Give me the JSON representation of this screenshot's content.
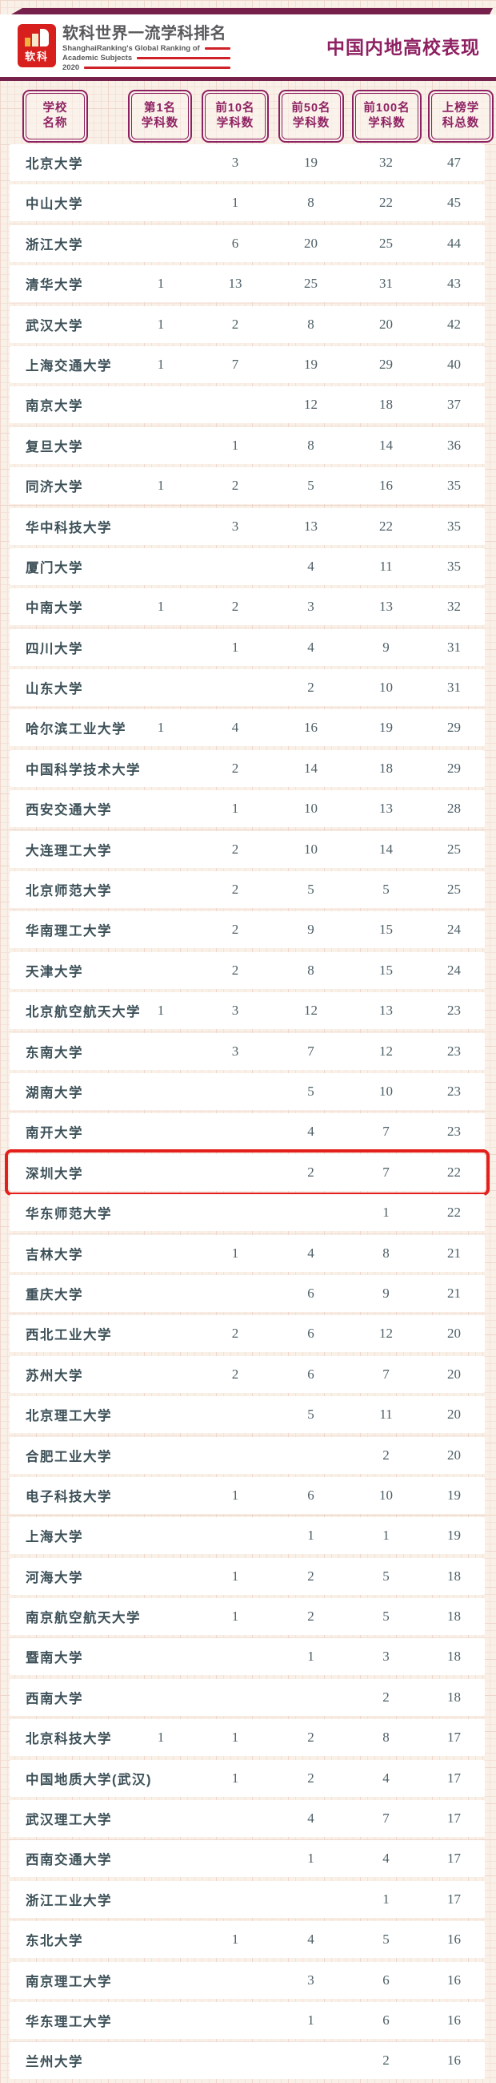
{
  "header": {
    "logo": {
      "brand_cn": "软科",
      "title_cn": "软科世界一流学科排名",
      "subtitle_line1": "ShanghaiRanking's Global Ranking of",
      "subtitle_line2": "Academic Subjects",
      "year": "2020"
    },
    "page_title": "中国内地高校表现"
  },
  "colors": {
    "accent_purple": "#8e2162",
    "banner_purple": "#76204c",
    "logo_red": "#d7201d",
    "rule_red": "#cf2128",
    "highlight_red": "#e3201b",
    "row_text": "#3d5158",
    "background_cream": "#f9f0e7"
  },
  "chart_data": {
    "type": "table",
    "title": "中国内地高校表现",
    "column_headers": [
      "学校名称",
      "第1名学科数",
      "前10名学科数",
      "前50名学科数",
      "前100名学科数",
      "上榜学科总数"
    ],
    "columns_display": [
      {
        "line1": "学校",
        "line2": "名称"
      },
      {
        "line1": "第1名",
        "line2": "学科数"
      },
      {
        "line1": "前10名",
        "line2": "学科数"
      },
      {
        "line1": "前50名",
        "line2": "学科数"
      },
      {
        "line1": "前100名",
        "line2": "学科数"
      },
      {
        "line1": "上榜学",
        "line2": "科总数"
      }
    ],
    "highlighted_row": "深圳大学",
    "rows": [
      {
        "name": "北京大学",
        "top1": "",
        "top10": "3",
        "top50": "19",
        "top100": "32",
        "total": "47"
      },
      {
        "name": "中山大学",
        "top1": "",
        "top10": "1",
        "top50": "8",
        "top100": "22",
        "total": "45"
      },
      {
        "name": "浙江大学",
        "top1": "",
        "top10": "6",
        "top50": "20",
        "top100": "25",
        "total": "44"
      },
      {
        "name": "清华大学",
        "top1": "1",
        "top10": "13",
        "top50": "25",
        "top100": "31",
        "total": "43"
      },
      {
        "name": "武汉大学",
        "top1": "1",
        "top10": "2",
        "top50": "8",
        "top100": "20",
        "total": "42"
      },
      {
        "name": "上海交通大学",
        "top1": "1",
        "top10": "7",
        "top50": "19",
        "top100": "29",
        "total": "40"
      },
      {
        "name": "南京大学",
        "top1": "",
        "top10": "",
        "top50": "12",
        "top100": "18",
        "total": "37"
      },
      {
        "name": "复旦大学",
        "top1": "",
        "top10": "1",
        "top50": "8",
        "top100": "14",
        "total": "36"
      },
      {
        "name": "同济大学",
        "top1": "1",
        "top10": "2",
        "top50": "5",
        "top100": "16",
        "total": "35"
      },
      {
        "name": "华中科技大学",
        "top1": "",
        "top10": "3",
        "top50": "13",
        "top100": "22",
        "total": "35"
      },
      {
        "name": "厦门大学",
        "top1": "",
        "top10": "",
        "top50": "4",
        "top100": "11",
        "total": "35"
      },
      {
        "name": "中南大学",
        "top1": "1",
        "top10": "2",
        "top50": "3",
        "top100": "13",
        "total": "32"
      },
      {
        "name": "四川大学",
        "top1": "",
        "top10": "1",
        "top50": "4",
        "top100": "9",
        "total": "31"
      },
      {
        "name": "山东大学",
        "top1": "",
        "top10": "",
        "top50": "2",
        "top100": "10",
        "total": "31"
      },
      {
        "name": "哈尔滨工业大学",
        "top1": "1",
        "top10": "4",
        "top50": "16",
        "top100": "19",
        "total": "29"
      },
      {
        "name": "中国科学技术大学",
        "top1": "",
        "top10": "2",
        "top50": "14",
        "top100": "18",
        "total": "29"
      },
      {
        "name": "西安交通大学",
        "top1": "",
        "top10": "1",
        "top50": "10",
        "top100": "13",
        "total": "28"
      },
      {
        "name": "大连理工大学",
        "top1": "",
        "top10": "2",
        "top50": "10",
        "top100": "14",
        "total": "25"
      },
      {
        "name": "北京师范大学",
        "top1": "",
        "top10": "2",
        "top50": "5",
        "top100": "5",
        "total": "25"
      },
      {
        "name": "华南理工大学",
        "top1": "",
        "top10": "2",
        "top50": "9",
        "top100": "15",
        "total": "24"
      },
      {
        "name": "天津大学",
        "top1": "",
        "top10": "2",
        "top50": "8",
        "top100": "15",
        "total": "24"
      },
      {
        "name": "北京航空航天大学",
        "top1": "1",
        "top10": "3",
        "top50": "12",
        "top100": "13",
        "total": "23"
      },
      {
        "name": "东南大学",
        "top1": "",
        "top10": "3",
        "top50": "7",
        "top100": "12",
        "total": "23"
      },
      {
        "name": "湖南大学",
        "top1": "",
        "top10": "",
        "top50": "5",
        "top100": "10",
        "total": "23"
      },
      {
        "name": "南开大学",
        "top1": "",
        "top10": "",
        "top50": "4",
        "top100": "7",
        "total": "23"
      },
      {
        "name": "深圳大学",
        "top1": "",
        "top10": "",
        "top50": "2",
        "top100": "7",
        "total": "22"
      },
      {
        "name": "华东师范大学",
        "top1": "",
        "top10": "",
        "top50": "",
        "top100": "1",
        "total": "22"
      },
      {
        "name": "吉林大学",
        "top1": "",
        "top10": "1",
        "top50": "4",
        "top100": "8",
        "total": "21"
      },
      {
        "name": "重庆大学",
        "top1": "",
        "top10": "",
        "top50": "6",
        "top100": "9",
        "total": "21"
      },
      {
        "name": "西北工业大学",
        "top1": "",
        "top10": "2",
        "top50": "6",
        "top100": "12",
        "total": "20"
      },
      {
        "name": "苏州大学",
        "top1": "",
        "top10": "2",
        "top50": "6",
        "top100": "7",
        "total": "20"
      },
      {
        "name": "北京理工大学",
        "top1": "",
        "top10": "",
        "top50": "5",
        "top100": "11",
        "total": "20"
      },
      {
        "name": "合肥工业大学",
        "top1": "",
        "top10": "",
        "top50": "",
        "top100": "2",
        "total": "20"
      },
      {
        "name": "电子科技大学",
        "top1": "",
        "top10": "1",
        "top50": "6",
        "top100": "10",
        "total": "19"
      },
      {
        "name": "上海大学",
        "top1": "",
        "top10": "",
        "top50": "1",
        "top100": "1",
        "total": "19"
      },
      {
        "name": "河海大学",
        "top1": "",
        "top10": "1",
        "top50": "2",
        "top100": "5",
        "total": "18"
      },
      {
        "name": "南京航空航天大学",
        "top1": "",
        "top10": "1",
        "top50": "2",
        "top100": "5",
        "total": "18"
      },
      {
        "name": "暨南大学",
        "top1": "",
        "top10": "",
        "top50": "1",
        "top100": "3",
        "total": "18"
      },
      {
        "name": "西南大学",
        "top1": "",
        "top10": "",
        "top50": "",
        "top100": "2",
        "total": "18"
      },
      {
        "name": "北京科技大学",
        "top1": "1",
        "top10": "1",
        "top50": "2",
        "top100": "8",
        "total": "17"
      },
      {
        "name": "中国地质大学(武汉)",
        "top1": "",
        "top10": "1",
        "top50": "2",
        "top100": "4",
        "total": "17"
      },
      {
        "name": "武汉理工大学",
        "top1": "",
        "top10": "",
        "top50": "4",
        "top100": "7",
        "total": "17"
      },
      {
        "name": "西南交通大学",
        "top1": "",
        "top10": "",
        "top50": "1",
        "top100": "4",
        "total": "17"
      },
      {
        "name": "浙江工业大学",
        "top1": "",
        "top10": "",
        "top50": "",
        "top100": "1",
        "total": "17"
      },
      {
        "name": "东北大学",
        "top1": "",
        "top10": "1",
        "top50": "4",
        "top100": "5",
        "total": "16"
      },
      {
        "name": "南京理工大学",
        "top1": "",
        "top10": "",
        "top50": "3",
        "top100": "6",
        "total": "16"
      },
      {
        "name": "华东理工大学",
        "top1": "",
        "top10": "",
        "top50": "1",
        "top100": "6",
        "total": "16"
      },
      {
        "name": "兰州大学",
        "top1": "",
        "top10": "",
        "top50": "",
        "top100": "2",
        "total": "16"
      }
    ]
  }
}
